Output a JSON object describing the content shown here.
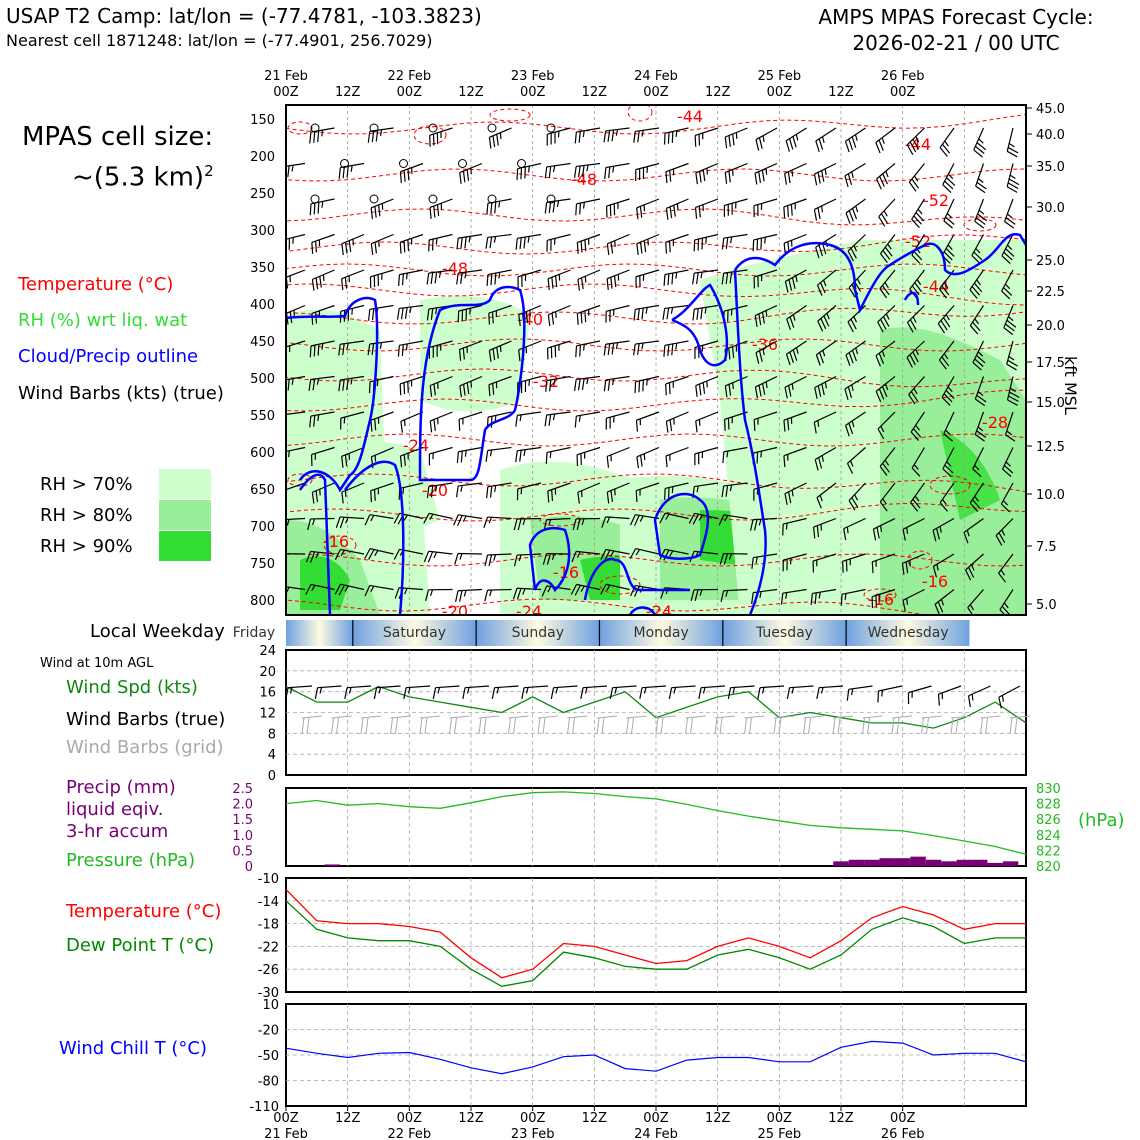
{
  "header": {
    "title_left": "USAP T2 Camp: lat/lon = (-77.4781, -103.3823)",
    "subtitle_left": "Nearest cell 1871248: lat/lon = (-77.4901, 256.7029)",
    "title_right_1": "AMPS MPAS Forecast Cycle:",
    "title_right_2": "2026-02-21 / 00 UTC"
  },
  "cell_size": {
    "line1": "MPAS cell size:",
    "line2": "~(5.3 km)",
    "sup": "2"
  },
  "legend": {
    "temperature": {
      "label": "Temperature (°C)",
      "color": "#ff0000"
    },
    "rh": {
      "label": "RH (%) wrt liq. wat",
      "color": "#33dd33"
    },
    "cloud": {
      "label": "Cloud/Precip outline",
      "color": "#0000ff"
    },
    "wind": {
      "label": "Wind Barbs (kts) (true)",
      "color": "#000000"
    },
    "rh_levels": [
      {
        "label": "RH > 70%",
        "color": "#ccffcc"
      },
      {
        "label": "RH > 80%",
        "color": "#99ee99"
      },
      {
        "label": "RH > 90%",
        "color": "#33dd33"
      }
    ]
  },
  "time_axis": {
    "top_dates": [
      "21 Feb",
      "22 Feb",
      "23 Feb",
      "24 Feb",
      "25 Feb",
      "26 Feb"
    ],
    "hour_labels": [
      "00Z",
      "12Z",
      "00Z",
      "12Z",
      "00Z",
      "12Z",
      "00Z",
      "12Z",
      "00Z",
      "12Z",
      "00Z"
    ],
    "bottom_dates": [
      "21 Feb",
      "22 Feb",
      "23 Feb",
      "24 Feb",
      "25 Feb",
      "26 Feb"
    ]
  },
  "weekday": {
    "label": "Local Weekday",
    "days": [
      "Friday",
      "Saturday",
      "Sunday",
      "Monday",
      "Tuesday",
      "Wednesday"
    ]
  },
  "panel_labels": {
    "wind10m": "Wind at 10m AGL",
    "wind_spd": "Wind Spd (kts)",
    "wind_barbs_true": "Wind Barbs (true)",
    "wind_barbs_grid": "Wind Barbs (grid)",
    "precip_1": "Precip (mm)",
    "precip_2": "liquid eqiv.",
    "precip_3": "3-hr accum",
    "pressure": "Pressure (hPa)",
    "pressure_unit": "(hPa)",
    "temp": "Temperature (°C)",
    "dewpoint": "Dew Point T (°C)",
    "windchill": "Wind Chill T (°C)",
    "kft": "kft MSL"
  },
  "colors": {
    "temp": "#ff0000",
    "dewpoint": "#008800",
    "windspd": "#118811",
    "pressure": "#22bb22",
    "precip": "#770077",
    "windchill": "#0000ff",
    "grid_barb": "#aaaaaa"
  },
  "chart_data": [
    {
      "type": "heatmap",
      "description_axes": "time-height cross section",
      "y_pressure_ticks": [
        150,
        200,
        250,
        300,
        350,
        400,
        450,
        500,
        550,
        600,
        650,
        700,
        750,
        800
      ],
      "y_kft_ticks": [
        "45.0",
        "40.0",
        "35.0",
        "30.0",
        "25.0",
        "22.5",
        "20.0",
        "17.5",
        "15.0",
        "12.5",
        "10.0",
        "7.5",
        "5.0"
      ],
      "temperature_contour_labels": [
        "-44",
        "-44",
        "-48",
        "-52",
        "-52",
        "-48",
        "-44",
        "-40",
        "-36",
        "-32",
        "-28",
        "-24",
        "-20",
        "-16",
        "-16",
        "-16",
        "-16",
        "-20",
        "-24",
        "-24"
      ]
    },
    {
      "type": "line",
      "name": "Wind Spd (kts)",
      "ylim": [
        0,
        24
      ],
      "yticks": [
        0,
        4,
        8,
        12,
        16,
        20,
        24
      ],
      "x_hours": [
        0,
        6,
        12,
        18,
        24,
        30,
        36,
        42,
        48,
        54,
        60,
        66,
        72,
        78,
        84,
        90,
        96,
        102,
        108,
        114,
        120,
        126,
        132,
        138,
        144
      ],
      "values": [
        17,
        14,
        14,
        17,
        15,
        14,
        13,
        12,
        15,
        12,
        14,
        16,
        11,
        13,
        15,
        16,
        11,
        12,
        11,
        10,
        10,
        9,
        11,
        14,
        10
      ]
    },
    {
      "type": "line",
      "name": "Pressure (hPa)",
      "ylim": [
        820,
        830
      ],
      "yticks": [
        820,
        822,
        824,
        826,
        828,
        830
      ],
      "x_hours": [
        0,
        6,
        12,
        18,
        24,
        30,
        36,
        42,
        48,
        54,
        60,
        66,
        72,
        78,
        84,
        90,
        96,
        102,
        108,
        114,
        120,
        126,
        132,
        138,
        144
      ],
      "values": [
        828.0,
        828.4,
        827.8,
        828.0,
        827.6,
        827.4,
        828.1,
        828.9,
        829.4,
        829.5,
        829.3,
        828.9,
        828.6,
        827.9,
        827.1,
        826.4,
        825.8,
        825.2,
        824.9,
        824.7,
        824.5,
        823.9,
        823.2,
        822.5,
        821.5
      ]
    },
    {
      "type": "bar",
      "name": "Precip (mm) liquid eqiv. 3-hr accum",
      "ylim": [
        0,
        2.5
      ],
      "yticks": [
        "0",
        "0.5",
        "1.0",
        "1.5",
        "2.0",
        "2.5"
      ],
      "x_hours": [
        9,
        108,
        111,
        114,
        117,
        120,
        123,
        126,
        129,
        132,
        135,
        138,
        141
      ],
      "values": [
        0.05,
        0.15,
        0.2,
        0.2,
        0.25,
        0.25,
        0.3,
        0.2,
        0.15,
        0.2,
        0.2,
        0.1,
        0.15
      ]
    },
    {
      "type": "line",
      "name": "Temperature / Dew Point (°C)",
      "ylim": [
        -30,
        -10
      ],
      "yticks": [
        -10,
        -14,
        -18,
        -22,
        -26,
        -30
      ],
      "x_hours": [
        0,
        6,
        12,
        18,
        24,
        30,
        36,
        42,
        48,
        54,
        60,
        66,
        72,
        78,
        84,
        90,
        96,
        102,
        108,
        114,
        120,
        126,
        132,
        138,
        144
      ],
      "series": [
        {
          "name": "Temperature (°C)",
          "values": [
            -12,
            -17.5,
            -18,
            -18,
            -18.5,
            -19.5,
            -24,
            -27.5,
            -26,
            -21.5,
            -22,
            -23.5,
            -25,
            -24.5,
            -22,
            -20.5,
            -22,
            -24,
            -21,
            -17,
            -15,
            -16.5,
            -19,
            -18,
            -18
          ]
        },
        {
          "name": "Dew Point T (°C)",
          "values": [
            -14,
            -19,
            -20.5,
            -21,
            -21,
            -22,
            -26,
            -29,
            -28,
            -23,
            -24,
            -25.5,
            -26,
            -26,
            -23.5,
            -22.5,
            -24,
            -26,
            -23.5,
            -19,
            -17,
            -18.5,
            -21.5,
            -20.5,
            -20.5
          ]
        }
      ]
    },
    {
      "type": "line",
      "name": "Wind Chill T (°C)",
      "ylim": [
        -110,
        10
      ],
      "yticks": [
        10,
        -20,
        -50,
        -80,
        -110
      ],
      "x_hours": [
        0,
        6,
        12,
        18,
        24,
        30,
        36,
        42,
        48,
        54,
        60,
        66,
        72,
        78,
        84,
        90,
        96,
        102,
        108,
        114,
        120,
        126,
        132,
        138,
        144
      ],
      "values": [
        -42,
        -48,
        -53,
        -48,
        -47,
        -55,
        -65,
        -72,
        -64,
        -52,
        -50,
        -66,
        -69,
        -56,
        -53,
        -53,
        -58,
        -58,
        -41,
        -34,
        -36,
        -50,
        -48,
        -48,
        -58
      ]
    }
  ]
}
